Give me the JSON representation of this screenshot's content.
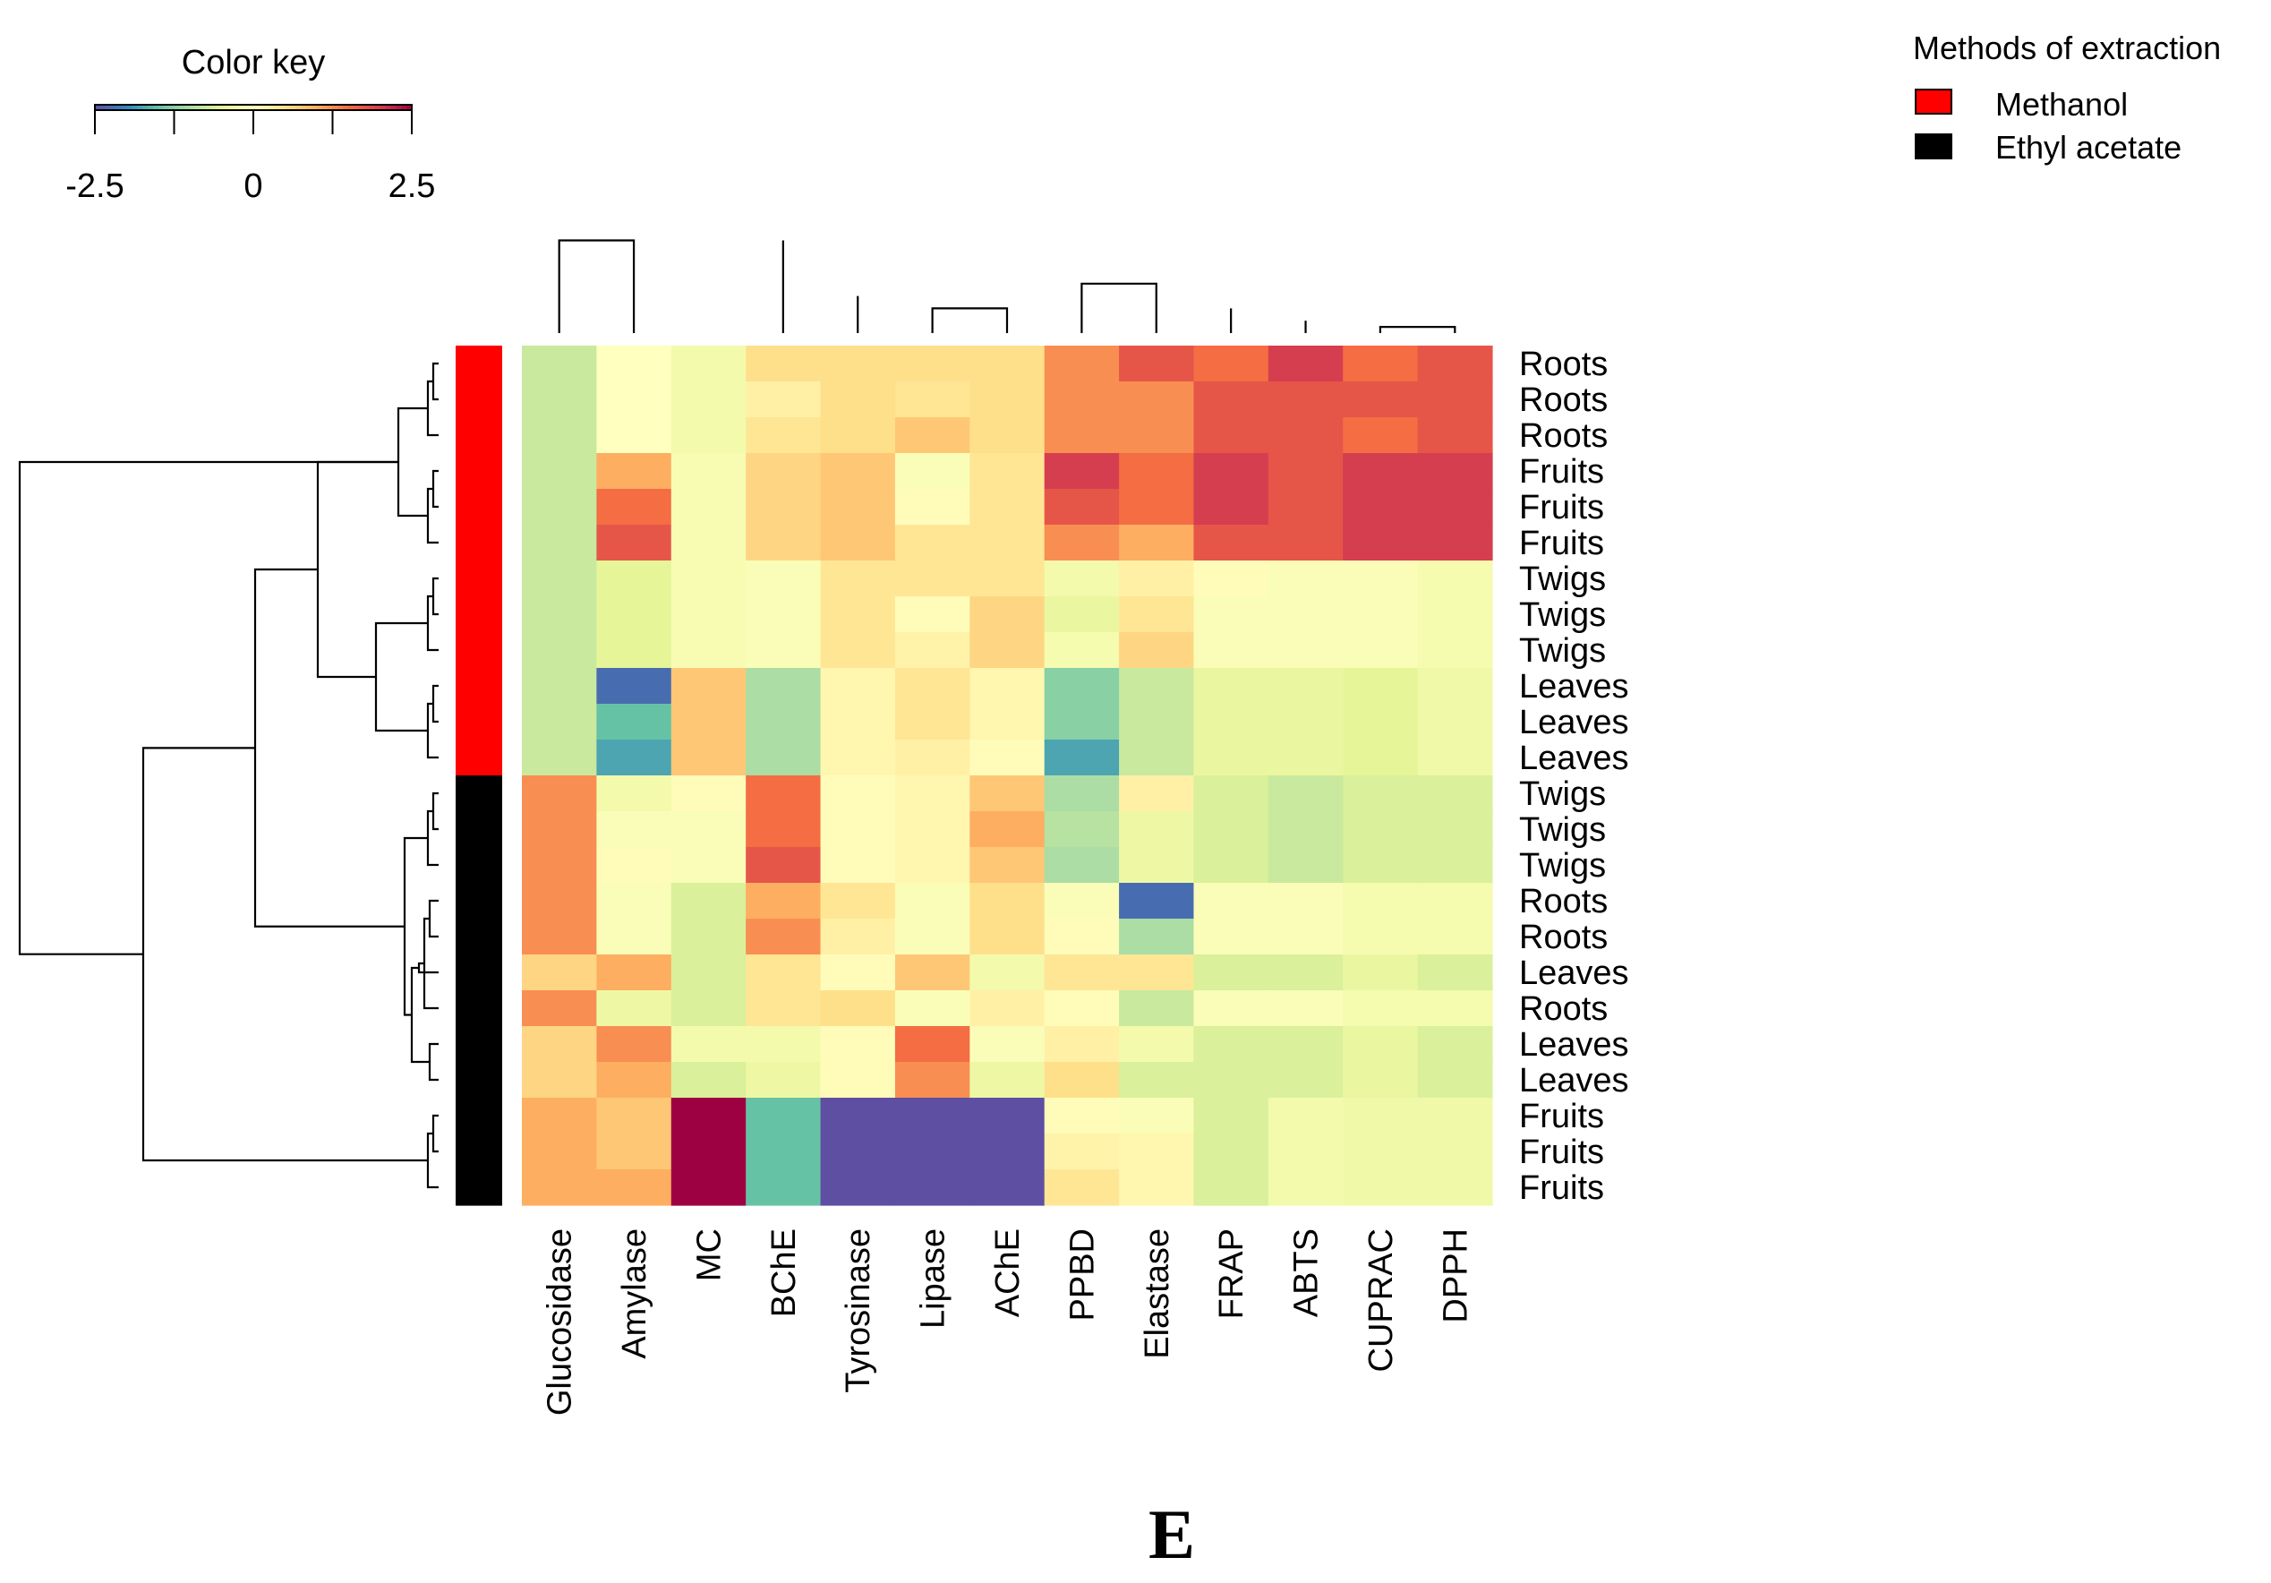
{
  "panel_label": "E",
  "color_key": {
    "title": "Color key",
    "ticks": [
      "-2.5",
      "0",
      "2.5"
    ],
    "range": [
      -2.5,
      2.5
    ],
    "palette": [
      "#5E4FA2",
      "#3288BD",
      "#66C2A5",
      "#ABDDA4",
      "#E6F598",
      "#FFFFBF",
      "#FEE08B",
      "#FDAE61",
      "#F46D43",
      "#D53E4F",
      "#9E0142"
    ]
  },
  "legend": {
    "title": "Methods of extraction",
    "items": [
      {
        "label": "Methanol",
        "color": "#FF0000"
      },
      {
        "label": "Ethyl acetate",
        "color": "#000000"
      }
    ]
  },
  "chart_data": {
    "type": "heatmap",
    "columns": [
      "Glucosidase",
      "Amylase",
      "MC",
      "BChE",
      "Tyrosinase",
      "Lipase",
      "AChE",
      "PPBD",
      "Elastase",
      "FRAP",
      "ABTS",
      "CUPRAC",
      "DPPH"
    ],
    "rows": [
      "Roots",
      "Roots",
      "Roots",
      "Fruits",
      "Fruits",
      "Fruits",
      "Twigs",
      "Twigs",
      "Twigs",
      "Leaves",
      "Leaves",
      "Leaves",
      "Twigs",
      "Twigs",
      "Twigs",
      "Roots",
      "Roots",
      "Leaves",
      "Roots",
      "Leaves",
      "Leaves",
      "Fruits",
      "Fruits",
      "Fruits"
    ],
    "row_groups": [
      "Methanol",
      "Methanol",
      "Methanol",
      "Methanol",
      "Methanol",
      "Methanol",
      "Methanol",
      "Methanol",
      "Methanol",
      "Methanol",
      "Methanol",
      "Methanol",
      "Ethyl acetate",
      "Ethyl acetate",
      "Ethyl acetate",
      "Ethyl acetate",
      "Ethyl acetate",
      "Ethyl acetate",
      "Ethyl acetate",
      "Ethyl acetate",
      "Ethyl acetate",
      "Ethyl acetate",
      "Ethyl acetate",
      "Ethyl acetate"
    ],
    "values": [
      [
        -0.75,
        0.0,
        -0.25,
        0.5,
        0.5,
        0.5,
        0.5,
        1.25,
        1.75,
        1.5,
        2.0,
        1.5,
        1.75
      ],
      [
        -0.75,
        0.0,
        -0.25,
        0.25,
        0.5,
        0.4,
        0.5,
        1.25,
        1.25,
        1.75,
        1.75,
        1.75,
        1.75
      ],
      [
        -0.75,
        0.0,
        -0.25,
        0.4,
        0.5,
        0.75,
        0.5,
        1.25,
        1.25,
        1.75,
        1.75,
        1.5,
        1.75
      ],
      [
        -0.75,
        1.0,
        -0.15,
        0.6,
        0.75,
        -0.1,
        0.4,
        2.0,
        1.5,
        2.0,
        1.75,
        2.0,
        2.0
      ],
      [
        -0.75,
        1.5,
        -0.15,
        0.6,
        0.75,
        0.05,
        0.4,
        1.75,
        1.5,
        2.0,
        1.75,
        2.0,
        2.0
      ],
      [
        -0.75,
        1.75,
        -0.15,
        0.6,
        0.75,
        0.4,
        0.4,
        1.25,
        1.0,
        1.75,
        1.75,
        2.0,
        2.0
      ],
      [
        -0.75,
        -0.5,
        -0.15,
        -0.1,
        0.4,
        0.4,
        0.4,
        -0.25,
        0.25,
        0.05,
        -0.1,
        -0.1,
        -0.2
      ],
      [
        -0.75,
        -0.5,
        -0.15,
        -0.1,
        0.4,
        0.05,
        0.6,
        -0.4,
        0.4,
        -0.1,
        -0.1,
        -0.1,
        -0.2
      ],
      [
        -0.75,
        -0.5,
        -0.15,
        -0.1,
        0.4,
        0.2,
        0.6,
        -0.2,
        0.6,
        -0.1,
        -0.1,
        -0.1,
        -0.2
      ],
      [
        -0.75,
        -2.25,
        0.75,
        -1.0,
        0.15,
        0.4,
        0.15,
        -1.25,
        -0.75,
        -0.4,
        -0.4,
        -0.5,
        -0.3
      ],
      [
        -0.75,
        -1.5,
        0.75,
        -1.0,
        0.15,
        0.4,
        0.15,
        -1.25,
        -0.75,
        -0.4,
        -0.4,
        -0.5,
        -0.3
      ],
      [
        -0.75,
        -1.75,
        0.75,
        -1.0,
        0.15,
        0.25,
        0.05,
        -1.75,
        -0.75,
        -0.4,
        -0.4,
        -0.5,
        -0.3
      ],
      [
        1.25,
        -0.25,
        0.05,
        1.5,
        0.05,
        0.15,
        0.75,
        -1.0,
        0.25,
        -0.6,
        -0.75,
        -0.6,
        -0.6
      ],
      [
        1.25,
        -0.1,
        -0.1,
        1.5,
        0.05,
        0.15,
        1.0,
        -0.9,
        -0.35,
        -0.6,
        -0.75,
        -0.6,
        -0.6
      ],
      [
        1.25,
        0.05,
        -0.1,
        1.75,
        0.05,
        0.15,
        0.75,
        -1.0,
        -0.35,
        -0.6,
        -0.75,
        -0.6,
        -0.6
      ],
      [
        1.25,
        -0.1,
        -0.6,
        1.0,
        0.4,
        -0.1,
        0.5,
        -0.1,
        -2.25,
        -0.1,
        -0.1,
        -0.2,
        -0.2
      ],
      [
        1.25,
        -0.1,
        -0.6,
        1.25,
        0.25,
        -0.1,
        0.5,
        0.05,
        -1.0,
        -0.1,
        -0.1,
        -0.2,
        -0.2
      ],
      [
        0.6,
        1.0,
        -0.6,
        0.4,
        0.05,
        0.75,
        -0.25,
        0.4,
        0.4,
        -0.6,
        -0.6,
        -0.4,
        -0.6
      ],
      [
        1.25,
        -0.35,
        -0.6,
        0.4,
        0.5,
        -0.1,
        0.25,
        0.05,
        -0.75,
        -0.1,
        -0.1,
        -0.2,
        -0.2
      ],
      [
        0.6,
        1.25,
        -0.25,
        -0.25,
        0.05,
        1.5,
        -0.1,
        0.25,
        -0.25,
        -0.6,
        -0.6,
        -0.4,
        -0.6
      ],
      [
        0.6,
        1.0,
        -0.6,
        -0.35,
        0.05,
        1.25,
        -0.35,
        0.5,
        -0.6,
        -0.6,
        -0.6,
        -0.4,
        -0.6
      ],
      [
        1.0,
        0.75,
        2.75,
        -1.5,
        -2.75,
        -2.75,
        -2.75,
        0.05,
        -0.1,
        -0.6,
        -0.25,
        -0.3,
        -0.3
      ],
      [
        1.0,
        0.75,
        2.75,
        -1.5,
        -2.75,
        -2.75,
        -2.75,
        0.2,
        0.15,
        -0.6,
        -0.25,
        -0.3,
        -0.3
      ],
      [
        1.0,
        1.0,
        2.75,
        -1.5,
        -2.75,
        -2.75,
        -2.75,
        0.4,
        0.15,
        -0.6,
        -0.25,
        -0.3,
        -0.3
      ]
    ]
  }
}
